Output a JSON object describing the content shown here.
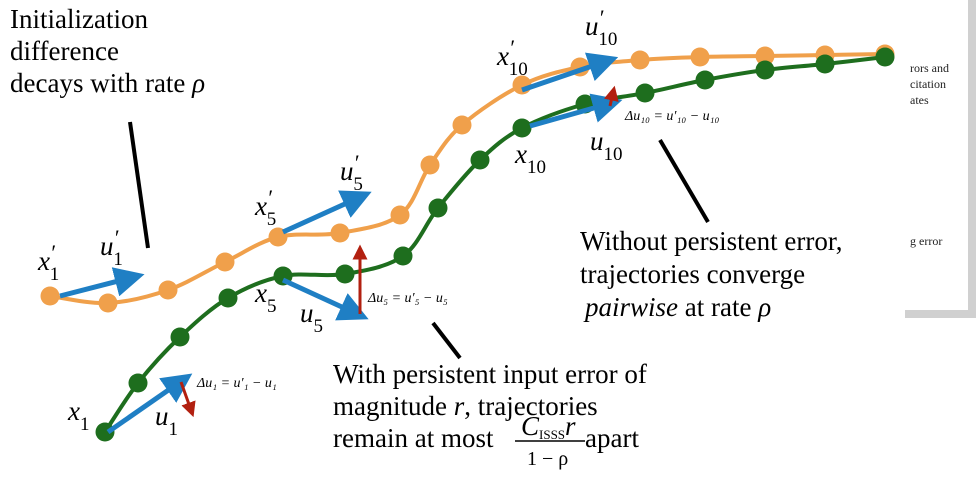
{
  "labels": [
    {
      "base": "x",
      "sup": "′",
      "sub": "1"
    },
    {
      "base": "u",
      "sup": "′",
      "sub": "1"
    },
    {
      "base": "x",
      "sup": "′",
      "sub": "5"
    },
    {
      "base": "u",
      "sup": "′",
      "sub": "5"
    },
    {
      "base": "x",
      "sup": "′",
      "sub": "10"
    },
    {
      "base": "u",
      "sup": "′",
      "sub": "10"
    },
    {
      "base": "x",
      "sub": "1"
    },
    {
      "base": "u",
      "sub": "1"
    },
    {
      "base": "x",
      "sub": "5"
    },
    {
      "base": "u",
      "sub": "5"
    },
    {
      "base": "x",
      "sub": "10"
    },
    {
      "base": "u",
      "sub": "10"
    }
  ],
  "deltas": [
    "Δu₁ = u′₁ − u₁",
    "Δu₅ = u′₅ − u₅",
    "Δu₁₀ = u′₁₀ − u₁₀"
  ],
  "annotations": [
    {
      "lines": [
        [
          {
            "text": "Initialization"
          }
        ],
        [
          {
            "text": "difference"
          }
        ],
        [
          {
            "text": "decays with rate "
          },
          {
            "text": "ρ",
            "italic": true
          }
        ]
      ]
    },
    {
      "lines": [
        [
          {
            "text": "With persistent input error of"
          }
        ],
        [
          {
            "text": "magnitude "
          },
          {
            "text": "r",
            "italic": true
          },
          {
            "text": ", trajectories"
          }
        ],
        [
          {
            "text": "remain at most "
          }
        ]
      ],
      "fraction": {
        "base": "C",
        "sub": "ISSS",
        "var": "r",
        "denominator": "1 − ρ"
      },
      "after": " apart"
    },
    {
      "lines": [
        [
          {
            "text": "Without persistent error,"
          }
        ],
        [
          {
            "text": "trajectories converge"
          }
        ],
        [
          {
            "text": "pairwise",
            "italic": true
          },
          {
            "text": " at rate  "
          },
          {
            "text": "ρ",
            "italic": true
          }
        ]
      ]
    }
  ],
  "background_text": [
    "rors and",
    "citation",
    "ates",
    "g error"
  ]
}
